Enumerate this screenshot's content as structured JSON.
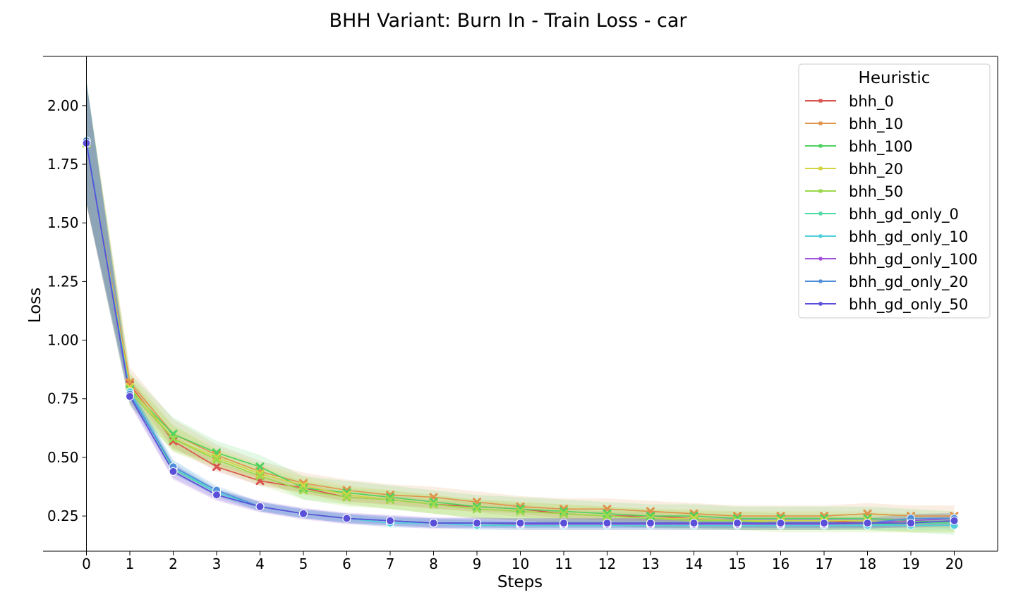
{
  "chart_data": {
    "type": "line",
    "title": "BHH Variant: Burn In - Train Loss - car",
    "xlabel": "Steps",
    "ylabel": "Loss",
    "x": [
      0,
      1,
      2,
      3,
      4,
      5,
      6,
      7,
      8,
      9,
      10,
      11,
      12,
      13,
      14,
      15,
      16,
      17,
      18,
      19,
      20
    ],
    "xlim": [
      -1,
      21
    ],
    "ylim": [
      0.1,
      2.21
    ],
    "yticks": [
      0.25,
      0.5,
      0.75,
      1.0,
      1.25,
      1.5,
      1.75,
      2.0
    ],
    "ytick_labels": [
      "0.25",
      "0.50",
      "0.75",
      "1.00",
      "1.25",
      "1.50",
      "1.75",
      "2.00"
    ],
    "legend": {
      "title": "Heuristic",
      "position": "top-right"
    },
    "series": [
      {
        "name": "bhh_0",
        "color": "#d9534f",
        "marker": "x",
        "band": 0.02,
        "values": [
          1.84,
          0.81,
          0.57,
          0.46,
          0.4,
          0.37,
          0.33,
          0.32,
          0.3,
          0.29,
          0.28,
          0.26,
          0.25,
          0.25,
          0.24,
          0.23,
          0.23,
          0.23,
          0.22,
          0.22,
          0.22
        ]
      },
      {
        "name": "bhh_10",
        "color": "#e0934a",
        "marker": "x",
        "band": 0.045,
        "values": [
          1.84,
          0.82,
          0.6,
          0.51,
          0.44,
          0.39,
          0.36,
          0.34,
          0.33,
          0.31,
          0.29,
          0.28,
          0.28,
          0.27,
          0.26,
          0.25,
          0.25,
          0.25,
          0.26,
          0.25,
          0.25
        ]
      },
      {
        "name": "bhh_100",
        "color": "#4fd25f",
        "marker": "x",
        "band": 0.05,
        "values": [
          1.84,
          0.79,
          0.6,
          0.52,
          0.46,
          0.37,
          0.35,
          0.33,
          0.31,
          0.29,
          0.28,
          0.27,
          0.26,
          0.25,
          0.25,
          0.24,
          0.24,
          0.24,
          0.24,
          0.23,
          0.22
        ]
      },
      {
        "name": "bhh_20",
        "color": "#d3d444",
        "marker": "x",
        "band": 0.04,
        "values": [
          1.84,
          0.8,
          0.58,
          0.5,
          0.43,
          0.38,
          0.34,
          0.32,
          0.3,
          0.28,
          0.27,
          0.26,
          0.25,
          0.24,
          0.24,
          0.23,
          0.23,
          0.23,
          0.23,
          0.22,
          0.22
        ]
      },
      {
        "name": "bhh_50",
        "color": "#9bd94c",
        "marker": "x",
        "band": 0.04,
        "values": [
          1.84,
          0.78,
          0.58,
          0.49,
          0.42,
          0.36,
          0.33,
          0.32,
          0.3,
          0.28,
          0.27,
          0.26,
          0.25,
          0.24,
          0.23,
          0.23,
          0.22,
          0.22,
          0.22,
          0.22,
          0.22
        ]
      },
      {
        "name": "bhh_gd_only_0",
        "color": "#4fd9a3",
        "marker": "o",
        "band": 0.015,
        "values": [
          1.85,
          0.78,
          0.45,
          0.35,
          0.29,
          0.26,
          0.24,
          0.23,
          0.22,
          0.22,
          0.21,
          0.21,
          0.21,
          0.21,
          0.21,
          0.21,
          0.21,
          0.21,
          0.21,
          0.22,
          0.22
        ]
      },
      {
        "name": "bhh_gd_only_10",
        "color": "#4fcfdb",
        "marker": "o",
        "band": 0.02,
        "values": [
          1.85,
          0.78,
          0.46,
          0.35,
          0.29,
          0.26,
          0.24,
          0.22,
          0.22,
          0.21,
          0.21,
          0.21,
          0.21,
          0.21,
          0.21,
          0.21,
          0.21,
          0.21,
          0.21,
          0.21,
          0.21
        ]
      },
      {
        "name": "bhh_gd_only_100",
        "color": "#a24fd9",
        "marker": "o",
        "band": 0.025,
        "values": [
          1.84,
          0.76,
          0.44,
          0.34,
          0.29,
          0.26,
          0.24,
          0.23,
          0.22,
          0.22,
          0.215,
          0.215,
          0.215,
          0.215,
          0.215,
          0.215,
          0.215,
          0.215,
          0.22,
          0.23,
          0.24
        ]
      },
      {
        "name": "bhh_gd_only_20",
        "color": "#4f8fd9",
        "marker": "o",
        "band": 0.02,
        "values": [
          1.85,
          0.77,
          0.46,
          0.36,
          0.29,
          0.26,
          0.24,
          0.23,
          0.22,
          0.22,
          0.22,
          0.22,
          0.22,
          0.22,
          0.22,
          0.22,
          0.22,
          0.22,
          0.22,
          0.24,
          0.24
        ]
      },
      {
        "name": "bhh_gd_only_50",
        "color": "#5a4fd9",
        "marker": "o",
        "band": 0.02,
        "values": [
          1.84,
          0.76,
          0.44,
          0.34,
          0.29,
          0.26,
          0.24,
          0.23,
          0.22,
          0.22,
          0.22,
          0.22,
          0.22,
          0.22,
          0.22,
          0.22,
          0.22,
          0.22,
          0.22,
          0.22,
          0.23
        ]
      }
    ]
  }
}
